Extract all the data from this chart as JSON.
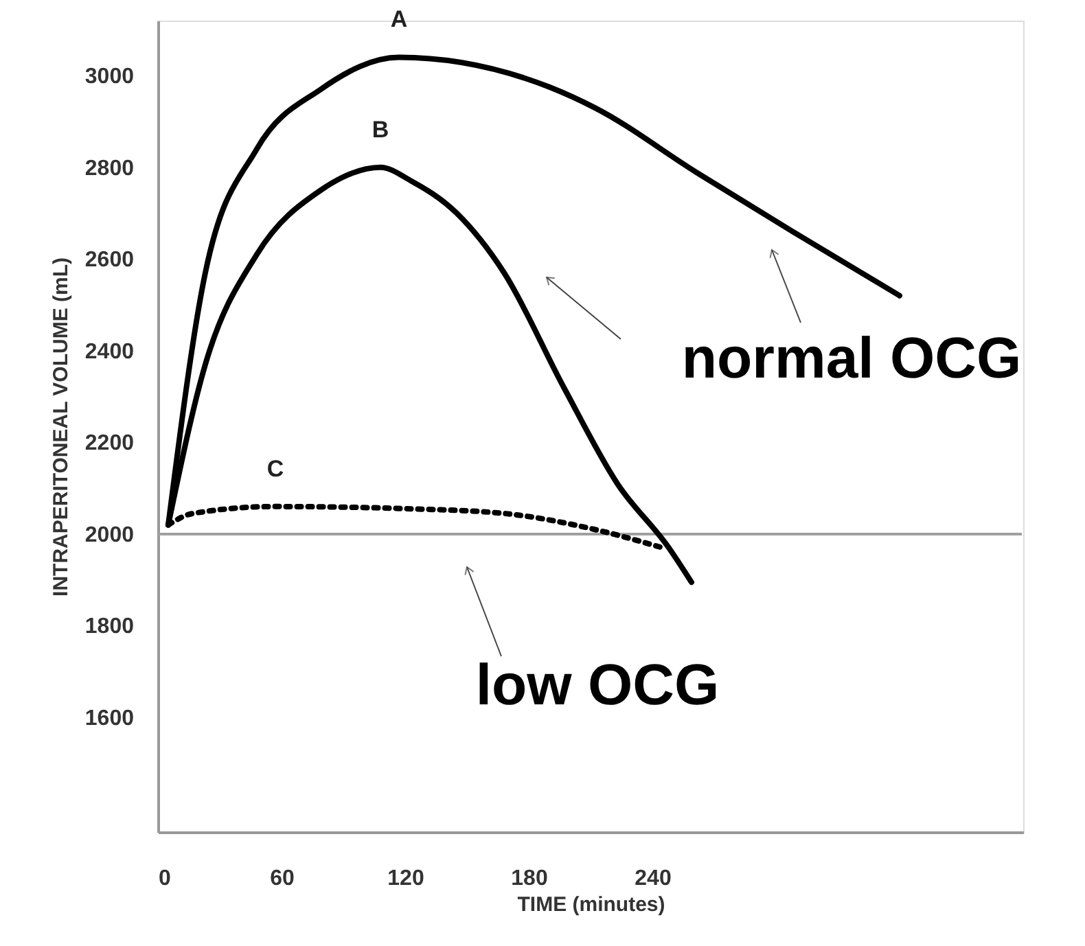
{
  "chart_data": {
    "type": "line",
    "xlabel": "TIME (minutes)",
    "ylabel": "INTRAPERITONEAL VOLUME (mL)",
    "xlim": [
      0,
      420
    ],
    "ylim": [
      1350,
      3120
    ],
    "xticks": [
      0,
      60,
      120,
      180,
      240
    ],
    "yticks": [
      1600,
      1800,
      2000,
      2200,
      2400,
      2600,
      2800,
      3000
    ],
    "grid": false,
    "marker": "none",
    "series": [
      {
        "name": "A",
        "color": "#000000",
        "line_style": "solid",
        "x": [
          5,
          23,
          48,
          79,
          117,
          190,
          212,
          261,
          308,
          360
        ],
        "values": [
          2020,
          2570,
          2840,
          2970,
          3040,
          2975,
          2930,
          2790,
          2660,
          2520
        ]
      },
      {
        "name": "B",
        "color": "#000000",
        "line_style": "solid",
        "x": [
          5,
          23,
          48,
          79,
          108,
          123,
          145,
          168,
          197,
          223,
          248,
          259
        ],
        "values": [
          2020,
          2370,
          2610,
          2750,
          2800,
          2770,
          2700,
          2570,
          2320,
          2110,
          1970,
          1895
        ]
      },
      {
        "name": "C",
        "color": "#000000",
        "line_style": "dotted",
        "x": [
          5,
          17,
          57,
          123,
          168,
          212,
          245
        ],
        "values": [
          2020,
          2045,
          2060,
          2055,
          2045,
          2010,
          1970
        ]
      }
    ],
    "ref_lines": [
      {
        "axis": "y",
        "value": 2000,
        "color": "#a0a0a0",
        "line_style": "solid"
      }
    ],
    "annotations": [
      "normal OCG",
      "low OCG"
    ]
  }
}
